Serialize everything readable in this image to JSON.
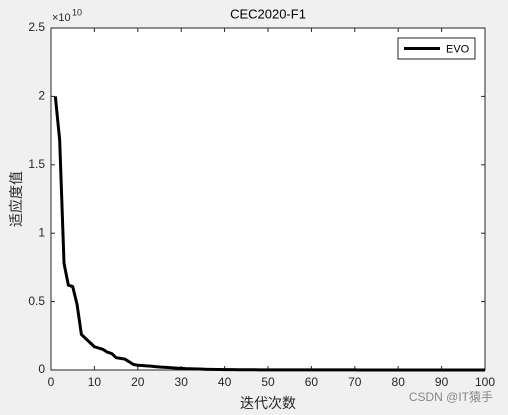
{
  "chart_data": {
    "type": "line",
    "title": "CEC2020-F1",
    "xlabel": "迭代次数",
    "ylabel": "适应度值",
    "y_exponent_base": "×10",
    "y_exponent_power": "10",
    "watermark": "CSDN @IT猿手",
    "x": [
      1,
      2,
      3,
      4,
      5,
      6,
      7,
      8,
      9,
      10,
      11,
      12,
      13,
      14,
      15,
      16,
      17,
      18,
      19,
      20,
      21,
      22,
      23,
      24,
      25,
      26,
      27,
      28,
      29,
      30,
      31,
      32,
      33,
      34,
      35,
      36,
      37,
      38,
      39,
      40,
      41,
      42,
      43,
      44,
      45,
      46,
      47,
      48,
      49,
      50,
      51,
      52,
      53,
      54,
      55,
      56,
      57,
      58,
      59,
      60,
      61,
      62,
      63,
      64,
      65,
      66,
      67,
      68,
      69,
      70,
      71,
      72,
      73,
      74,
      75,
      76,
      77,
      78,
      79,
      80,
      81,
      82,
      83,
      84,
      85,
      86,
      87,
      88,
      89,
      90,
      91,
      92,
      93,
      94,
      95,
      96,
      97,
      98,
      99,
      100
    ],
    "series": [
      {
        "name": "EVO",
        "color": "#000000",
        "values": [
          2.0,
          1.68,
          0.78,
          0.62,
          0.61,
          0.48,
          0.26,
          0.23,
          0.2,
          0.17,
          0.16,
          0.15,
          0.13,
          0.12,
          0.09,
          0.085,
          0.08,
          0.06,
          0.04,
          0.035,
          0.033,
          0.03,
          0.028,
          0.025,
          0.022,
          0.02,
          0.018,
          0.016,
          0.014,
          0.012,
          0.01,
          0.009,
          0.008,
          0.007,
          0.006,
          0.005,
          0.0045,
          0.004,
          0.0035,
          0.003,
          0.0028,
          0.0025,
          0.0022,
          0.002,
          0.0018,
          0.0016,
          0.0014,
          0.0012,
          0.001,
          0.001,
          0.0008,
          0.0008,
          0.0008,
          0.0008,
          0.0008,
          0.0008,
          0.0008,
          0.0008,
          0.0008,
          0.0008,
          0.0005,
          0.0005,
          0.0005,
          0.0005,
          0.0005,
          0.0005,
          0.0005,
          0.0005,
          0.0005,
          0.0005,
          0.0003,
          0.0003,
          0.0003,
          0.0003,
          0.0003,
          0.0003,
          0.0003,
          0.0003,
          0.0003,
          0.0003,
          0.0002,
          0.0002,
          0.0002,
          0.0002,
          0.0002,
          0.0002,
          0.0002,
          0.0002,
          0.0002,
          0.0002,
          0.0001,
          0.0001,
          0.0001,
          0.0001,
          0.0001,
          0.0001,
          0.0001,
          0.0001,
          0.0001,
          0.0001
        ]
      }
    ],
    "xlim": [
      0,
      100
    ],
    "xticks": [
      0,
      10,
      20,
      30,
      40,
      50,
      60,
      70,
      80,
      90,
      100
    ],
    "ylim": [
      0,
      2.5
    ],
    "yticks": [
      0,
      0.5,
      1,
      1.5,
      2,
      2.5
    ],
    "legend": "northeast",
    "grid": false
  }
}
